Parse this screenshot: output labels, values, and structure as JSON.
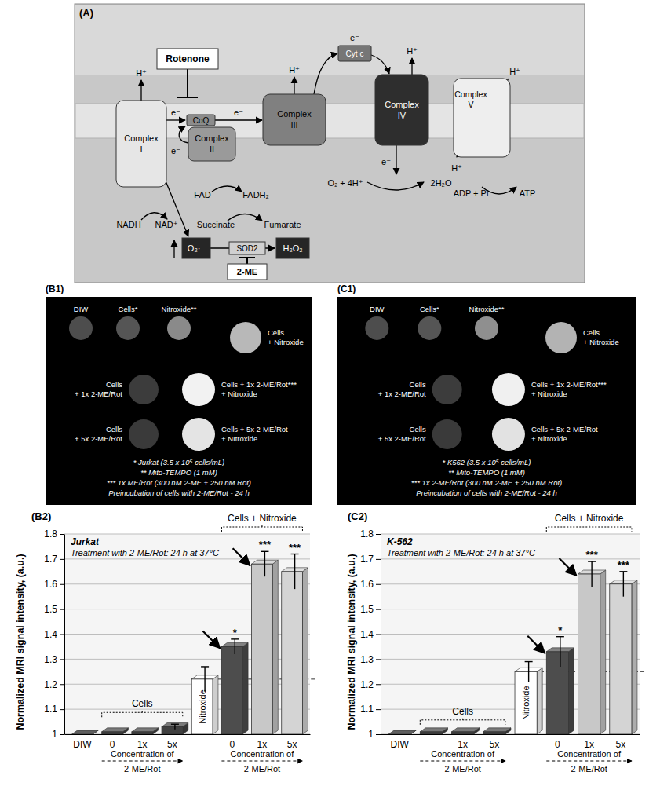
{
  "diagram": {
    "nodes": [
      {
        "label": "(A)"
      },
      {
        "label": "Rotenone"
      },
      {
        "label": "Complex I"
      },
      {
        "label": "Complex II"
      },
      {
        "label": "CoQ"
      },
      {
        "label": "Complex III"
      },
      {
        "label": "Cyt c"
      },
      {
        "label": "Complex IV"
      },
      {
        "label": "Complex V"
      },
      {
        "label": "H⁺"
      },
      {
        "label": "H⁺"
      },
      {
        "label": "H⁺"
      },
      {
        "label": "H⁺"
      },
      {
        "label": "H⁺"
      },
      {
        "label": "e⁻"
      },
      {
        "label": "e⁻"
      },
      {
        "label": "e⁻"
      },
      {
        "label": "e⁻"
      },
      {
        "label": "e⁻"
      },
      {
        "label": "FAD"
      },
      {
        "label": "FADH₂"
      },
      {
        "label": "Succinate"
      },
      {
        "label": "Fumarate"
      },
      {
        "label": "NADH"
      },
      {
        "label": "NAD⁺"
      },
      {
        "label": "O₂ + 4H⁺"
      },
      {
        "label": "2H₂O"
      },
      {
        "label": "ADP + Pi"
      },
      {
        "label": "ATP"
      },
      {
        "label": "O₂·⁻"
      },
      {
        "label": "SOD2"
      },
      {
        "label": "H₂O₂"
      },
      {
        "label": "2-ME"
      }
    ]
  },
  "phantoms": [
    {
      "panel_label": "(B1)",
      "items": [
        {
          "label_lines": [
            "DIW"
          ],
          "color": "#4d4d4d"
        },
        {
          "label_lines": [
            "Cells*"
          ],
          "color": "#555555"
        },
        {
          "label_lines": [
            "Nitroxide**"
          ],
          "color": "#8a8a8a"
        },
        {
          "label_lines": [
            "Cells",
            "+ Nitroxide"
          ],
          "color": "#b8b8b8"
        },
        {
          "label_lines": [
            "Cells",
            "+ 1x 2-ME/Rot"
          ],
          "color": "#3c3c3c"
        },
        {
          "label_lines": [
            "Cells + 1x 2-ME/Rot***",
            "+ Nitroxide"
          ],
          "color": "#f2f2f2"
        },
        {
          "label_lines": [
            "Cells",
            "+ 5x 2-ME/Rot"
          ],
          "color": "#3a3a3a"
        },
        {
          "label_lines": [
            "Cells + 5x 2-ME/Rot",
            "+ NItroxide"
          ],
          "color": "#e4e4e4"
        }
      ],
      "notes": [
        "* Jurkat (3.5 x 10⁵ cells/mL)",
        "** Mito-TEMPO (1 mM)",
        "*** 1x ME/Rot (300 nM 2-ME + 250 nM Rot)",
        "Preincubation of cells with 2-ME/Rot - 24 h"
      ]
    },
    {
      "panel_label": "(C1)",
      "items": [
        {
          "label_lines": [
            "DIW"
          ],
          "color": "#4d4d4d"
        },
        {
          "label_lines": [
            "Cells*"
          ],
          "color": "#555555"
        },
        {
          "label_lines": [
            "Nitroxide**"
          ],
          "color": "#8f8f8f"
        },
        {
          "label_lines": [
            "Cells",
            "+ Nitroxide"
          ],
          "color": "#b3b3b3"
        },
        {
          "label_lines": [
            "Cells",
            "+ 1x 2-ME/Rot"
          ],
          "color": "#3c3c3c"
        },
        {
          "label_lines": [
            "Cells + 1x 2-ME/Rot***",
            "+ Nitroxide"
          ],
          "color": "#f0f0f0"
        },
        {
          "label_lines": [
            "Cells",
            "+ 5x 2-ME/Rot"
          ],
          "color": "#3a3a3a"
        },
        {
          "label_lines": [
            "Cells + 5x 2-ME/Rot",
            "+ Nitroxide"
          ],
          "color": "#e2e2e2"
        }
      ],
      "notes": [
        "* K562 (3.5 x 10⁵ cells/mL)",
        "** Mito-TEMPO (1 mM)",
        "*** 1x 2-ME/Rot (300 nM 2-ME + 250 nM Rot)",
        "Preincubation of cells with 2-ME/Rot - 24 h"
      ]
    }
  ],
  "chart_data": [
    {
      "type": "bar",
      "panel_label": "(B2)",
      "title": "Jurkat",
      "subtitle": "Treatment with 2-ME/Rot: 24 h at 37°C",
      "y_label": "Normalized MRI signal intensity, (a.u.)",
      "categories": [
        "DIW",
        "0",
        "1x",
        "5x",
        "Nitroxide",
        "0",
        "1x",
        "5x"
      ],
      "values": [
        1.0,
        1.01,
        1.01,
        1.03,
        1.22,
        1.35,
        1.68,
        1.65
      ],
      "errors": [
        null,
        null,
        null,
        0.01,
        0.05,
        0.03,
        0.05,
        0.07
      ],
      "significance": [
        null,
        null,
        null,
        null,
        null,
        "*",
        "***",
        "***"
      ],
      "colors": [
        "#1a1a1a",
        "#404040",
        "#404040",
        "#404040",
        "#ffffff",
        "#4d4d4d",
        "#c8c8c8",
        "#d4d4d4"
      ],
      "groups": [
        {
          "label": "Cells",
          "axis_text": "Concentration of 2-ME/Rot",
          "first": 1,
          "last": 3
        },
        {
          "label": "Cells + Nitroxide",
          "axis_text": "Concentration of 2-ME/Rot",
          "first": 5,
          "last": 7
        }
      ],
      "ylim": [
        1,
        1.8
      ],
      "yticks": [
        1,
        1.1,
        1.2,
        1.3,
        1.4,
        1.5,
        1.6,
        1.7,
        1.8
      ],
      "grid": true
    },
    {
      "type": "bar",
      "panel_label": "(C2)",
      "title": "K-562",
      "subtitle": "Treatment with 2-ME/Rot: 24 h at 37°C",
      "y_label": "Normalized MRI signal intensity, (a.u.)",
      "categories": [
        "DIW",
        null,
        "1x",
        "5x",
        "Nitroxide",
        "0",
        "1x",
        "5x"
      ],
      "values": [
        1.0,
        1.01,
        1.01,
        1.01,
        1.25,
        1.33,
        1.64,
        1.6
      ],
      "errors": [
        null,
        null,
        null,
        null,
        0.04,
        0.06,
        0.05,
        0.05
      ],
      "significance": [
        null,
        null,
        null,
        null,
        null,
        "*",
        "***",
        "***"
      ],
      "colors": [
        "#1a1a1a",
        "#404040",
        "#404040",
        "#404040",
        "#ffffff",
        "#4d4d4d",
        "#c8c8c8",
        "#d4d4d4"
      ],
      "groups": [
        {
          "label": "Cells",
          "axis_text": "Concentration of 2-ME/Rot",
          "first": 1,
          "last": 3
        },
        {
          "label": "Cells + Nitroxide",
          "axis_text": "Concentration of 2-ME/Rot",
          "first": 5,
          "last": 7
        }
      ],
      "ylim": [
        1,
        1.8
      ],
      "yticks": [
        1,
        1.1,
        1.2,
        1.3,
        1.4,
        1.5,
        1.6,
        1.7,
        1.8
      ],
      "grid": true
    }
  ]
}
